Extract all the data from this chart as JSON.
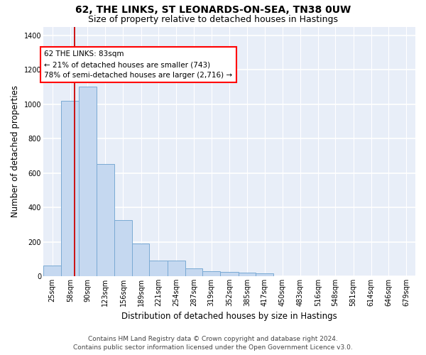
{
  "title": "62, THE LINKS, ST LEONARDS-ON-SEA, TN38 0UW",
  "subtitle": "Size of property relative to detached houses in Hastings",
  "xlabel": "Distribution of detached houses by size in Hastings",
  "ylabel": "Number of detached properties",
  "footer_line1": "Contains HM Land Registry data © Crown copyright and database right 2024.",
  "footer_line2": "Contains public sector information licensed under the Open Government Licence v3.0.",
  "bar_color": "#c5d8f0",
  "bar_edge_color": "#7aaad4",
  "background_color": "#e8eef8",
  "grid_color": "#d0d8e8",
  "annotation_text": "62 THE LINKS: 83sqm\n← 21% of detached houses are smaller (743)\n78% of semi-detached houses are larger (2,716) →",
  "red_line_x": 83,
  "bin_edges": [
    25,
    58,
    90,
    123,
    156,
    189,
    221,
    254,
    287,
    319,
    352,
    385,
    417,
    450,
    483,
    516,
    548,
    581,
    614,
    646,
    679
  ],
  "bar_heights": [
    63,
    1020,
    1100,
    650,
    325,
    190,
    90,
    90,
    45,
    30,
    25,
    20,
    15,
    0,
    0,
    0,
    0,
    0,
    0,
    0
  ],
  "ylim": [
    0,
    1450
  ],
  "yticks": [
    0,
    200,
    400,
    600,
    800,
    1000,
    1200,
    1400
  ],
  "title_fontsize": 10,
  "subtitle_fontsize": 9,
  "axis_label_fontsize": 8.5,
  "tick_fontsize": 7,
  "footer_fontsize": 6.5,
  "annotation_fontsize": 7.5
}
